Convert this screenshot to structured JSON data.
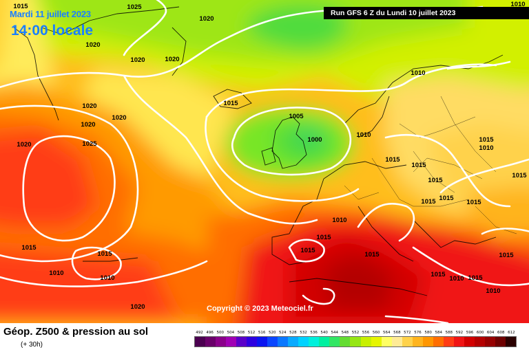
{
  "header": {
    "date": "Mardi 11 juillet 2023",
    "time": "14:00 locale",
    "run": "Run GFS 6 Z du Lundi 10 juillet 2023"
  },
  "copyright": "Copyright © 2023 Meteociel.fr",
  "footer": {
    "label": "Géop. Z500 & pression au sol",
    "forecast": "(+ 30h)"
  },
  "isobar_labels": [
    "1015",
    "1025",
    "1020",
    "1020",
    "1020",
    "1020",
    "1015",
    "1020",
    "1020",
    "1020",
    "1020",
    "1025",
    "1005",
    "1000",
    "1010",
    "1010",
    "1015",
    "1015",
    "1015",
    "1015",
    "1015",
    "1015",
    "1015",
    "1010",
    "1010",
    "1015",
    "1015",
    "1015",
    "1010",
    "1015",
    "1010",
    "1010",
    "1015",
    "1015",
    "1010",
    "1015",
    "1010",
    "1015",
    "1015",
    "1020"
  ],
  "scale": {
    "values": [
      "492",
      "496",
      "500",
      "504",
      "508",
      "512",
      "516",
      "520",
      "524",
      "528",
      "532",
      "536",
      "540",
      "544",
      "548",
      "552",
      "556",
      "560",
      "564",
      "568",
      "572",
      "576",
      "580",
      "584",
      "588",
      "592",
      "596",
      "600",
      "604",
      "608",
      "612"
    ],
    "colors": [
      "#4b0050",
      "#6a006a",
      "#8a008a",
      "#a000b4",
      "#5a00c8",
      "#2d00e0",
      "#0a14f0",
      "#0a46ff",
      "#0a78ff",
      "#0aaaff",
      "#00d2ff",
      "#00f0dc",
      "#00f0a0",
      "#32e664",
      "#64dc32",
      "#96e614",
      "#c8f000",
      "#e6f500",
      "#ffff64",
      "#ffeb96",
      "#ffd24b",
      "#ffb41e",
      "#ff9600",
      "#ff6e00",
      "#ff3c14",
      "#f01414",
      "#d20000",
      "#b40000",
      "#960000",
      "#6e0000",
      "#2a0000"
    ]
  }
}
